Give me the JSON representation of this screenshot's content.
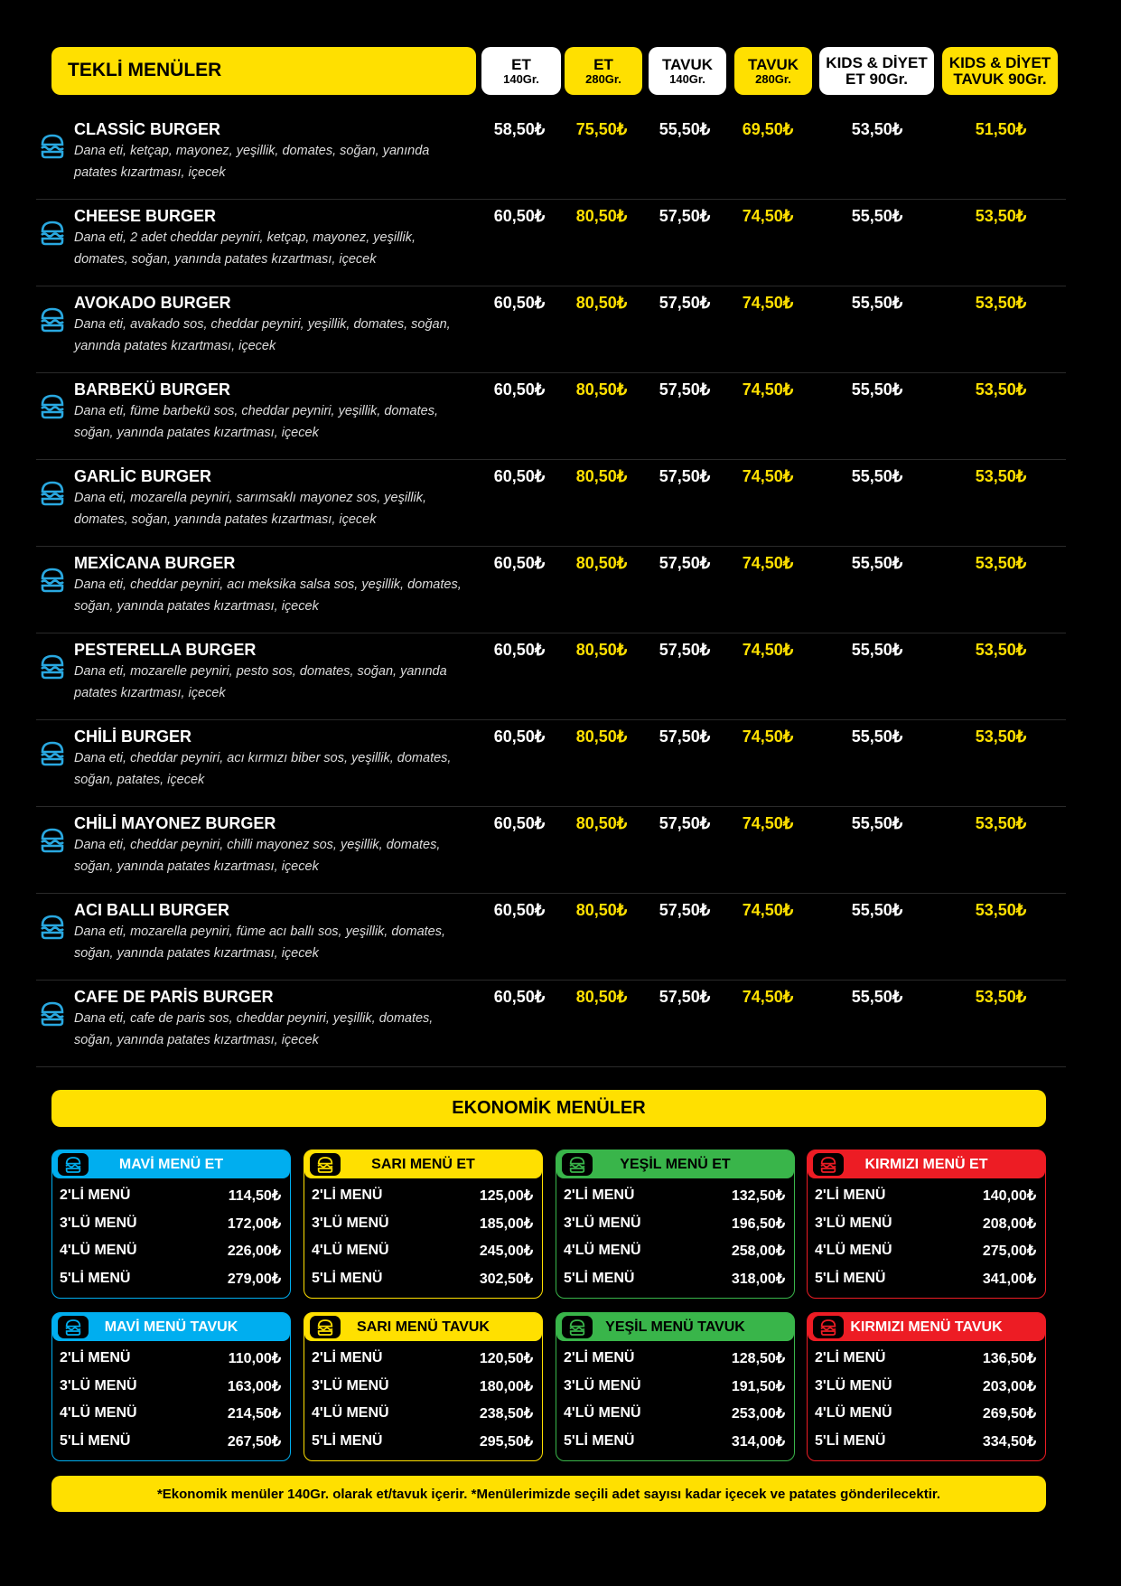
{
  "colors": {
    "accent_yellow": "#ffe000",
    "blue": "#00aeef",
    "yellow": "#ffe000",
    "green": "#39b54a",
    "red": "#ed1c24",
    "icon_blue": "#29a8e0"
  },
  "header": {
    "title": "TEKLİ MENÜLER",
    "columns": [
      {
        "line1": "ET",
        "line2": "140Gr.",
        "style": "white"
      },
      {
        "line1": "ET",
        "line2": "280Gr.",
        "style": "yellow"
      },
      {
        "line1": "TAVUK",
        "line2": "140Gr.",
        "style": "white"
      },
      {
        "line1": "TAVUK",
        "line2": "280Gr.",
        "style": "yellow"
      },
      {
        "line1": "KIDS & DİYET",
        "line2": "ET 90Gr.",
        "style": "white"
      },
      {
        "line1": "KIDS & DİYET",
        "line2": "TAVUK 90Gr.",
        "style": "yellow"
      }
    ]
  },
  "items": [
    {
      "name": "CLASSİC BURGER",
      "desc": "Dana eti, ketçap, mayonez, yeşillik, domates, soğan, yanında patates kızartması, içecek",
      "prices": [
        "58,50₺",
        "75,50₺",
        "55,50₺",
        "69,50₺",
        "53,50₺",
        "51,50₺"
      ]
    },
    {
      "name": "CHEESE BURGER",
      "desc": "Dana eti, 2 adet cheddar peyniri, ketçap, mayonez, yeşillik, domates, soğan, yanında patates kızartması, içecek",
      "prices": [
        "60,50₺",
        "80,50₺",
        "57,50₺",
        "74,50₺",
        "55,50₺",
        "53,50₺"
      ]
    },
    {
      "name": "AVOKADO BURGER",
      "desc": "Dana eti, avakado sos, cheddar peyniri, yeşillik, domates, soğan, yanında patates kızartması, içecek",
      "prices": [
        "60,50₺",
        "80,50₺",
        "57,50₺",
        "74,50₺",
        "55,50₺",
        "53,50₺"
      ]
    },
    {
      "name": "BARBEKÜ BURGER",
      "desc": "Dana eti, füme barbekü sos, cheddar peyniri, yeşillik, domates, soğan, yanında patates kızartması, içecek",
      "prices": [
        "60,50₺",
        "80,50₺",
        "57,50₺",
        "74,50₺",
        "55,50₺",
        "53,50₺"
      ]
    },
    {
      "name": "GARLİC BURGER",
      "desc": "Dana eti, mozarella peyniri, sarımsaklı mayonez sos, yeşillik, domates, soğan, yanında patates kızartması, içecek",
      "prices": [
        "60,50₺",
        "80,50₺",
        "57,50₺",
        "74,50₺",
        "55,50₺",
        "53,50₺"
      ]
    },
    {
      "name": "MEXİCANA BURGER",
      "desc": "Dana eti, cheddar peyniri, acı meksika salsa sos, yeşillik, domates, soğan, yanında patates kızartması, içecek",
      "prices": [
        "60,50₺",
        "80,50₺",
        "57,50₺",
        "74,50₺",
        "55,50₺",
        "53,50₺"
      ]
    },
    {
      "name": "PESTERELLA BURGER",
      "desc": "Dana eti, mozarelle peyniri, pesto sos, domates, soğan, yanında patates kızartması, içecek",
      "prices": [
        "60,50₺",
        "80,50₺",
        "57,50₺",
        "74,50₺",
        "55,50₺",
        "53,50₺"
      ]
    },
    {
      "name": "CHİLİ BURGER",
      "desc": "Dana eti, cheddar peyniri, acı kırmızı biber sos, yeşillik, domates, soğan, patates, içecek",
      "prices": [
        "60,50₺",
        "80,50₺",
        "57,50₺",
        "74,50₺",
        "55,50₺",
        "53,50₺"
      ]
    },
    {
      "name": "CHİLİ MAYONEZ BURGER",
      "desc": "Dana eti, cheddar peyniri, chilli mayonez sos, yeşillik, domates, soğan, yanında patates kızartması, içecek",
      "prices": [
        "60,50₺",
        "80,50₺",
        "57,50₺",
        "74,50₺",
        "55,50₺",
        "53,50₺"
      ]
    },
    {
      "name": "ACI BALLI BURGER",
      "desc": "Dana eti, mozarella peyniri, füme acı ballı sos, yeşillik, domates, soğan, yanında patates kızartması, içecek",
      "prices": [
        "60,50₺",
        "80,50₺",
        "57,50₺",
        "74,50₺",
        "55,50₺",
        "53,50₺"
      ]
    },
    {
      "name": "CAFE DE PARİS BURGER",
      "desc": "Dana eti, cafe de paris sos, cheddar peyniri, yeşillik, domates, soğan, yanında patates kızartması, içecek",
      "prices": [
        "60,50₺",
        "80,50₺",
        "57,50₺",
        "74,50₺",
        "55,50₺",
        "53,50₺"
      ]
    }
  ],
  "economy": {
    "title": "EKONOMİK MENÜLER",
    "boxes": [
      {
        "title": "MAVİ MENÜ ET",
        "color": "blue",
        "rows": [
          [
            "2'Lİ MENÜ",
            "114,50₺"
          ],
          [
            "3'LÜ MENÜ",
            "172,00₺"
          ],
          [
            "4'LÜ MENÜ",
            "226,00₺"
          ],
          [
            "5'Lİ MENÜ",
            "279,00₺"
          ]
        ]
      },
      {
        "title": "SARI MENÜ ET",
        "color": "yellow",
        "rows": [
          [
            "2'Lİ MENÜ",
            "125,00₺"
          ],
          [
            "3'LÜ MENÜ",
            "185,00₺"
          ],
          [
            "4'LÜ MENÜ",
            "245,00₺"
          ],
          [
            "5'Lİ MENÜ",
            "302,50₺"
          ]
        ]
      },
      {
        "title": "YEŞİL MENÜ ET",
        "color": "green",
        "rows": [
          [
            "2'Lİ MENÜ",
            "132,50₺"
          ],
          [
            "3'LÜ MENÜ",
            "196,50₺"
          ],
          [
            "4'LÜ MENÜ",
            "258,00₺"
          ],
          [
            "5'Lİ MENÜ",
            "318,00₺"
          ]
        ]
      },
      {
        "title": "KIRMIZI MENÜ ET",
        "color": "red",
        "rows": [
          [
            "2'Lİ MENÜ",
            "140,00₺"
          ],
          [
            "3'LÜ MENÜ",
            "208,00₺"
          ],
          [
            "4'LÜ MENÜ",
            "275,00₺"
          ],
          [
            "5'Lİ MENÜ",
            "341,00₺"
          ]
        ]
      },
      {
        "title": "MAVİ MENÜ TAVUK",
        "color": "blue",
        "rows": [
          [
            "2'Lİ MENÜ",
            "110,00₺"
          ],
          [
            "3'LÜ MENÜ",
            "163,00₺"
          ],
          [
            "4'LÜ MENÜ",
            "214,50₺"
          ],
          [
            "5'Lİ MENÜ",
            "267,50₺"
          ]
        ]
      },
      {
        "title": "SARI MENÜ TAVUK",
        "color": "yellow",
        "rows": [
          [
            "2'Lİ MENÜ",
            "120,50₺"
          ],
          [
            "3'LÜ MENÜ",
            "180,00₺"
          ],
          [
            "4'LÜ MENÜ",
            "238,50₺"
          ],
          [
            "5'Lİ MENÜ",
            "295,50₺"
          ]
        ]
      },
      {
        "title": "YEŞİL MENÜ TAVUK",
        "color": "green",
        "rows": [
          [
            "2'Lİ MENÜ",
            "128,50₺"
          ],
          [
            "3'LÜ MENÜ",
            "191,50₺"
          ],
          [
            "4'LÜ MENÜ",
            "253,00₺"
          ],
          [
            "5'Lİ MENÜ",
            "314,00₺"
          ]
        ]
      },
      {
        "title": "KIRMIZI MENÜ TAVUK",
        "color": "red",
        "rows": [
          [
            "2'Lİ MENÜ",
            "136,50₺"
          ],
          [
            "3'LÜ MENÜ",
            "203,00₺"
          ],
          [
            "4'LÜ MENÜ",
            "269,50₺"
          ],
          [
            "5'Lİ MENÜ",
            "334,50₺"
          ]
        ]
      }
    ]
  },
  "footer": "*Ekonomik menüler 140Gr. olarak et/tavuk içerir. *Menülerimizde seçili adet sayısı kadar içecek ve patates gönderilecektir."
}
